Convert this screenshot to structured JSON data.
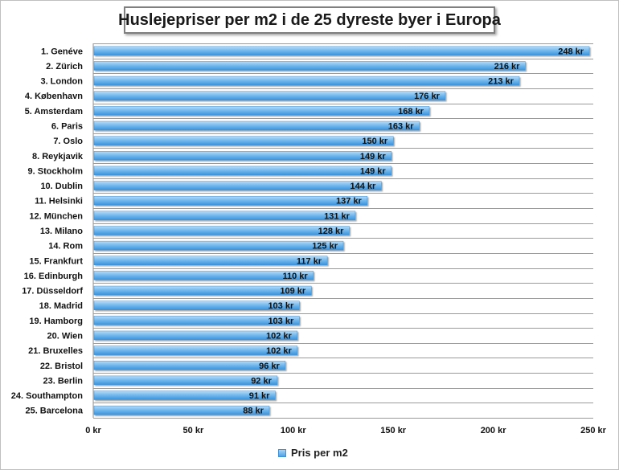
{
  "chart_data": {
    "type": "bar",
    "orientation": "horizontal",
    "title": "Huslejepriser per m2 i de 25 dyreste byer i Europa",
    "categories": [
      "1. Genéve",
      "2. Zürich",
      "3. London",
      "4. København",
      "5. Amsterdam",
      "6. Paris",
      "7. Oslo",
      "8. Reykjavik",
      "9. Stockholm",
      "10. Dublin",
      "11. Helsinki",
      "12. München",
      "13. Milano",
      "14. Rom",
      "15. Frankfurt",
      "16. Edinburgh",
      "17. Düsseldorf",
      "18. Madrid",
      "19. Hamborg",
      "20. Wien",
      "21. Bruxelles",
      "22. Bristol",
      "23. Berlin",
      "24. Southampton",
      "25. Barcelona"
    ],
    "series": [
      {
        "name": "Pris per m2",
        "values": [
          248,
          216,
          213,
          176,
          168,
          163,
          150,
          149,
          149,
          144,
          137,
          131,
          128,
          125,
          117,
          110,
          109,
          103,
          103,
          102,
          102,
          96,
          92,
          91,
          88
        ]
      }
    ],
    "value_suffix": " kr",
    "xlim": [
      0,
      250
    ],
    "x_ticks": [
      "0 kr",
      "50 kr",
      "100 kr",
      "150 kr",
      "200 kr",
      "250 kr"
    ],
    "x_tick_values": [
      0,
      50,
      100,
      150,
      200,
      250
    ],
    "grid": true,
    "legend_position": "bottom",
    "bar_color": "#4aa3e8"
  }
}
